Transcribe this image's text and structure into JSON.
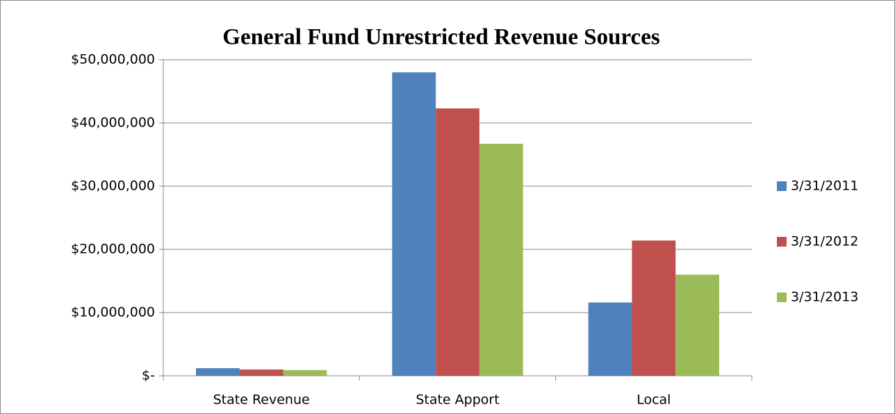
{
  "chart_data": {
    "type": "bar",
    "title": "General Fund Unrestricted Revenue Sources",
    "categories": [
      "State Revenue",
      "State Apport",
      "Local"
    ],
    "series": [
      {
        "name": "3/31/2011",
        "color": "#4f81bd",
        "values": [
          1200000,
          48000000,
          11600000
        ]
      },
      {
        "name": "3/31/2012",
        "color": "#c0504d",
        "values": [
          1000000,
          42300000,
          21400000
        ]
      },
      {
        "name": "3/31/2013",
        "color": "#9bbb59",
        "values": [
          900000,
          36700000,
          16000000
        ]
      }
    ],
    "ylim": [
      0,
      50000000
    ],
    "yticks": [
      {
        "value": 0,
        "label": "$-"
      },
      {
        "value": 10000000,
        "label": "$10,000,000"
      },
      {
        "value": 20000000,
        "label": "$20,000,000"
      },
      {
        "value": 30000000,
        "label": "$30,000,000"
      },
      {
        "value": 40000000,
        "label": "$40,000,000"
      },
      {
        "value": 50000000,
        "label": "$50,000,000"
      }
    ],
    "grid": true,
    "legend": "right"
  }
}
